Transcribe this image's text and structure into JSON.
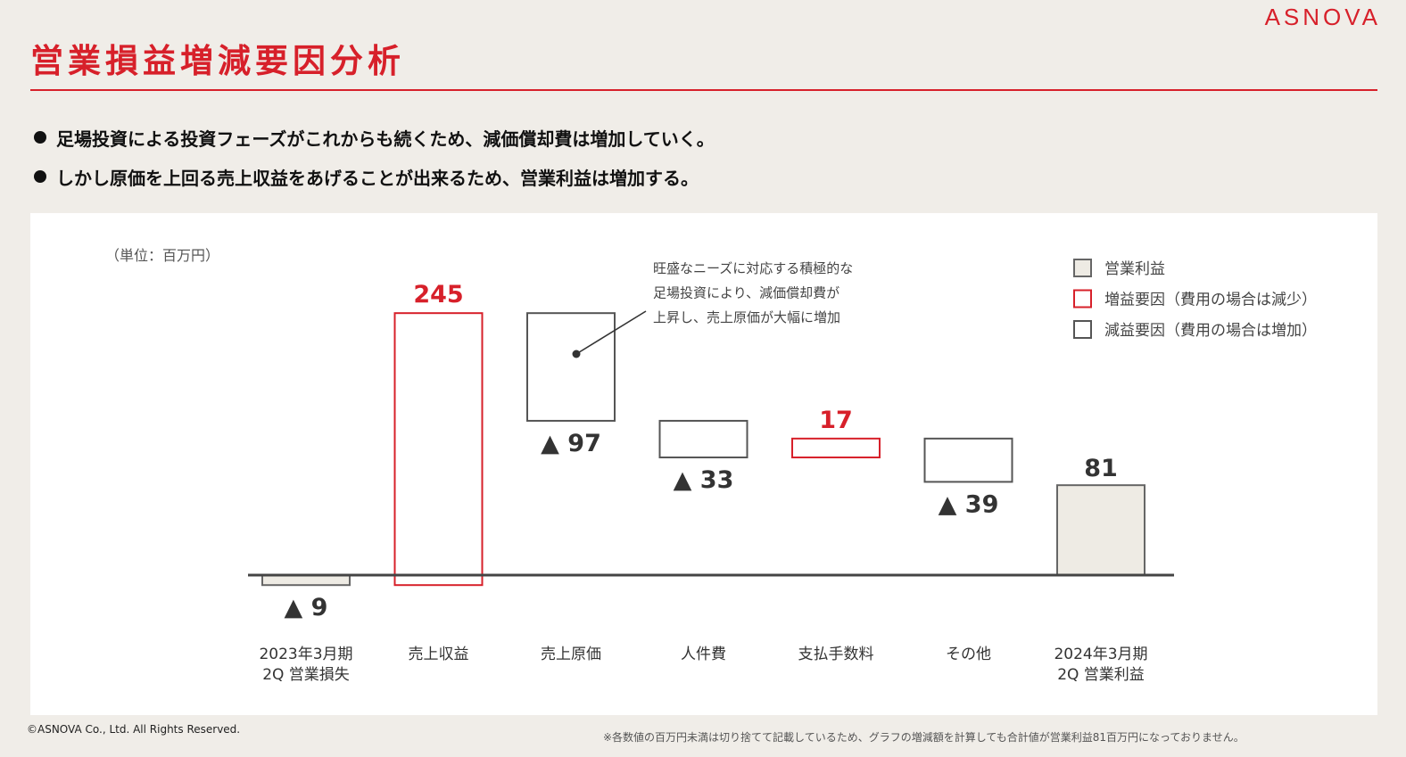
{
  "header": {
    "logo": "ASNOVA",
    "title": "営業損益増減要因分析"
  },
  "bullets": [
    "足場投資による投資フェーズがこれからも続くため、減価償却費は増加していく。",
    "しかし原価を上回る売上収益をあげることが出来るため、営業利益は増加する。"
  ],
  "chart_data": {
    "type": "bar",
    "subtype": "waterfall",
    "unit_label": "（単位：百万円）",
    "categories": [
      "2023年3月期\n2Q 営業損失",
      "売上収益",
      "売上原価",
      "人件費",
      "支払手数料",
      "その他",
      "2024年3月期\n2Q 営業利益"
    ],
    "values": [
      -9,
      245,
      -97,
      -33,
      17,
      -39,
      81
    ],
    "bar_kind": [
      "total",
      "increase",
      "decrease",
      "decrease",
      "increase",
      "decrease",
      "total"
    ],
    "value_labels": [
      "▲ 9",
      "245",
      "▲ 97",
      "▲ 33",
      "17",
      "▲ 39",
      "81"
    ],
    "legend": [
      {
        "label": "営業利益",
        "kind": "total"
      },
      {
        "label": "増益要因（費用の場合は減少）",
        "kind": "increase"
      },
      {
        "label": "減益要因（費用の場合は増加）",
        "kind": "decrease"
      }
    ],
    "legend_position": "top-right",
    "annotation": [
      "旺盛なニーズに対応する積極的な",
      "足場投資により、減価償却費が",
      "上昇し、売上原価が大幅に増加"
    ],
    "colors": {
      "total_fill": "#eeebe4",
      "total_stroke": "#666666",
      "increase": "#d7202a",
      "decrease": "#555555",
      "axis": "#444444"
    }
  },
  "footer": {
    "copyright": "©ASNOVA Co., Ltd. All Rights Reserved.",
    "note": "※各数値の百万円未満は切り捨てて記載しているため、グラフの増減額を計算しても合計値が営業利益81百万円になっておりません。"
  }
}
